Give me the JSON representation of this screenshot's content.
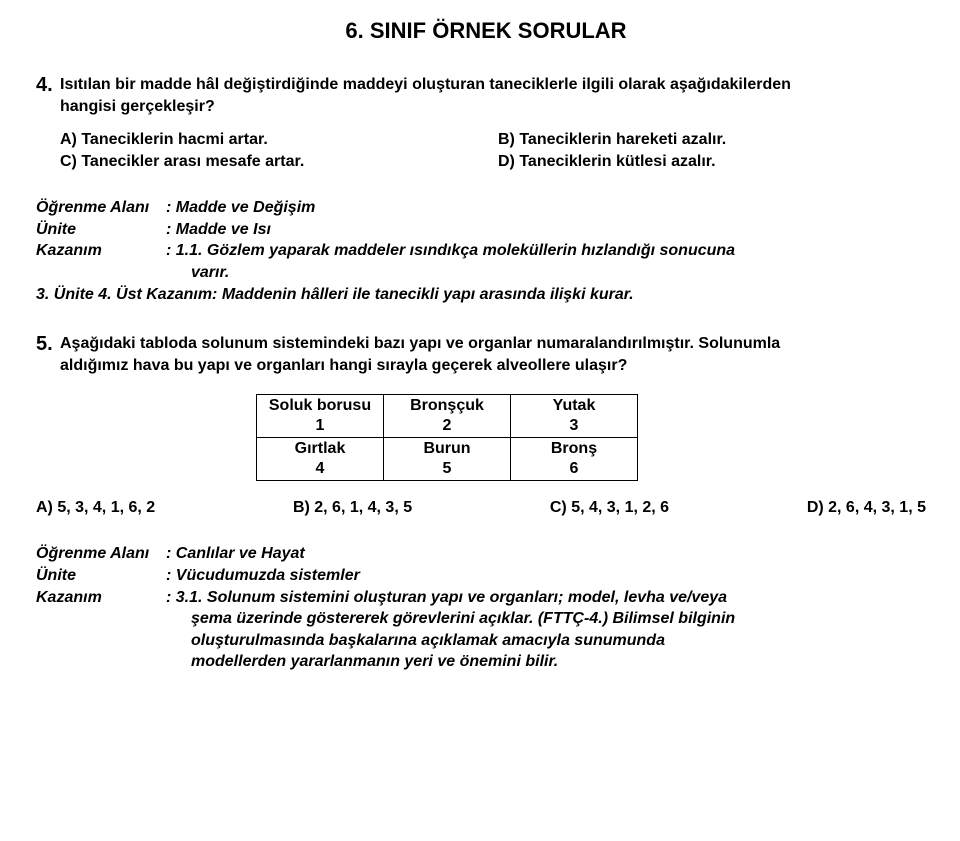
{
  "title": "6. SINIF ÖRNEK SORULAR",
  "q4": {
    "number": "4.",
    "text_l1": "Isıtılan bir madde hâl değiştirdiğinde maddeyi oluşturan taneciklerle ilgili olarak aşağıdakilerden",
    "text_l2": "hangisi gerçekleşir?",
    "opt_a": "A) Taneciklerin hacmi artar.",
    "opt_b": "B) Taneciklerin hareketi azalır.",
    "opt_c": "C) Tanecikler arası mesafe artar.",
    "opt_d": "D) Taneciklerin kütlesi azalır."
  },
  "meta1": {
    "alani_label": "Öğrenme Alanı",
    "alani_val": ": Madde ve Değişim",
    "unite_label": "Ünite",
    "unite_val": ": Madde ve Isı",
    "kazanim_label": "Kazanım",
    "kazanim_l1": ": 1.1. Gözlem yaparak maddeler ısındıkça moleküllerin hızlandığı sonucuna",
    "kazanim_l2": "  varır.",
    "extra": "3. Ünite 4. Üst Kazanım:  Maddenin hâlleri ile tanecikli yapı arasında ilişki kurar."
  },
  "q5": {
    "number": "5.",
    "text_l1": "Aşağıdaki tabloda solunum sistemindeki bazı yapı ve organlar numaralandırılmıştır. Solunumla",
    "text_l2": "aldığımız hava bu yapı ve organları hangi sırayla geçerek alveollere ulaşır?",
    "table": {
      "r1c1a": "Soluk borusu",
      "r1c1b": "1",
      "r1c2a": "Bronşçuk",
      "r1c2b": "2",
      "r1c3a": "Yutak",
      "r1c3b": "3",
      "r2c1a": "Gırtlak",
      "r2c1b": "4",
      "r2c2a": "Burun",
      "r2c2b": "5",
      "r2c3a": "Bronş",
      "r2c3b": "6"
    },
    "opt_a": "A) 5, 3, 4, 1, 6, 2",
    "opt_b": "B) 2, 6, 1, 4, 3, 5",
    "opt_c": "C) 5, 4, 3, 1, 2, 6",
    "opt_d": "D) 2, 6, 4, 3, 1, 5"
  },
  "meta2": {
    "alani_label": "Öğrenme Alanı",
    "alani_val": ": Canlılar ve Hayat",
    "unite_label": "Ünite",
    "unite_val": ": Vücudumuzda sistemler",
    "kazanim_label": "Kazanım",
    "kazanim_l1": ": 3.1. Solunum sistemini oluşturan yapı ve organları; model, levha ve/veya",
    "kazanim_l2": "şema üzerinde göstererek görevlerini açıklar. (FTTÇ-4.) Bilimsel bilginin",
    "kazanim_l3": "oluşturulmasında başkalarına açıklamak amacıyla sunumunda",
    "kazanim_l4": "modellerden yararlanmanın yeri ve önemini bilir."
  }
}
